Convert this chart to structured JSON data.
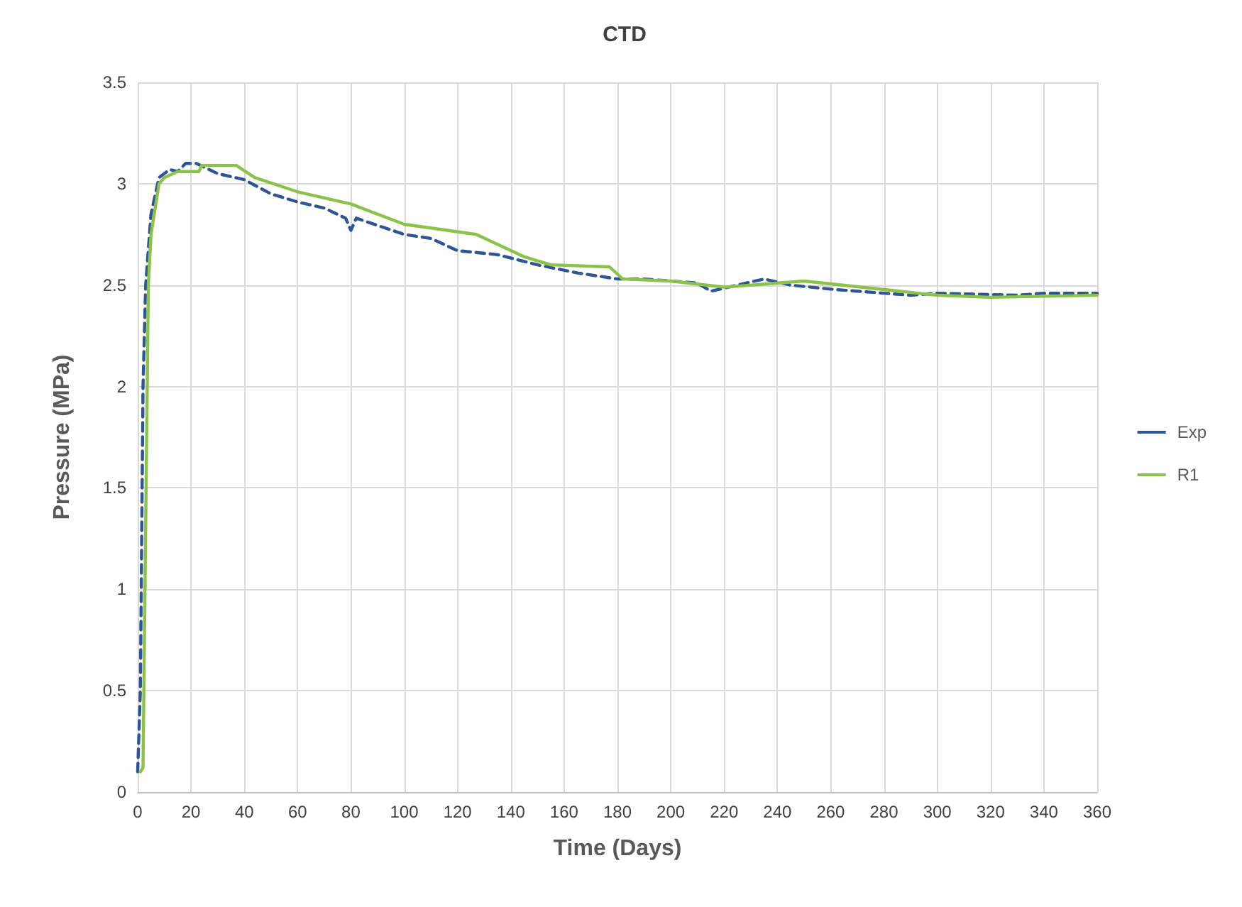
{
  "chart_data": {
    "type": "line",
    "title": "CTD",
    "xlabel": "Time (Days)",
    "ylabel": "Pressure (MPa)",
    "xlim": [
      0,
      360
    ],
    "xticks": [
      0,
      20,
      40,
      60,
      80,
      100,
      120,
      140,
      160,
      180,
      200,
      220,
      240,
      260,
      280,
      300,
      320,
      340,
      360
    ],
    "ylim": [
      0,
      3.5
    ],
    "yticks": [
      0,
      0.5,
      1,
      1.5,
      2,
      2.5,
      3,
      3.5
    ],
    "grid": true,
    "legend": "right",
    "marker": "none",
    "series": [
      {
        "name": "Exp",
        "color": "#2f5597",
        "line_style": "dashed",
        "x": [
          0,
          1,
          2,
          3,
          5,
          8,
          12,
          15,
          18,
          22,
          30,
          40,
          50,
          60,
          70,
          78,
          80,
          82,
          100,
          110,
          120,
          135,
          150,
          165,
          180,
          190,
          200,
          210,
          215,
          225,
          235,
          245,
          260,
          280,
          290,
          300,
          330,
          340,
          360
        ],
        "values": [
          0.1,
          0.5,
          2.0,
          2.5,
          2.85,
          3.03,
          3.07,
          3.06,
          3.1,
          3.1,
          3.05,
          3.02,
          2.95,
          2.91,
          2.88,
          2.83,
          2.77,
          2.83,
          2.75,
          2.73,
          2.67,
          2.65,
          2.6,
          2.56,
          2.53,
          2.53,
          2.52,
          2.51,
          2.47,
          2.5,
          2.53,
          2.5,
          2.48,
          2.46,
          2.45,
          2.46,
          2.45,
          2.46,
          2.46
        ]
      },
      {
        "name": "R1",
        "color": "#8bc34a",
        "line_style": "solid",
        "x": [
          1,
          2,
          4,
          5,
          8,
          10,
          15,
          23,
          24,
          37,
          44,
          60,
          80,
          100,
          127,
          145,
          155,
          177,
          182,
          200,
          220,
          250,
          300,
          320,
          360
        ],
        "values": [
          0.1,
          0.12,
          2.5,
          2.75,
          3.0,
          3.03,
          3.06,
          3.06,
          3.09,
          3.09,
          3.03,
          2.96,
          2.9,
          2.8,
          2.75,
          2.64,
          2.6,
          2.59,
          2.53,
          2.52,
          2.49,
          2.52,
          2.45,
          2.44,
          2.45
        ]
      }
    ]
  }
}
